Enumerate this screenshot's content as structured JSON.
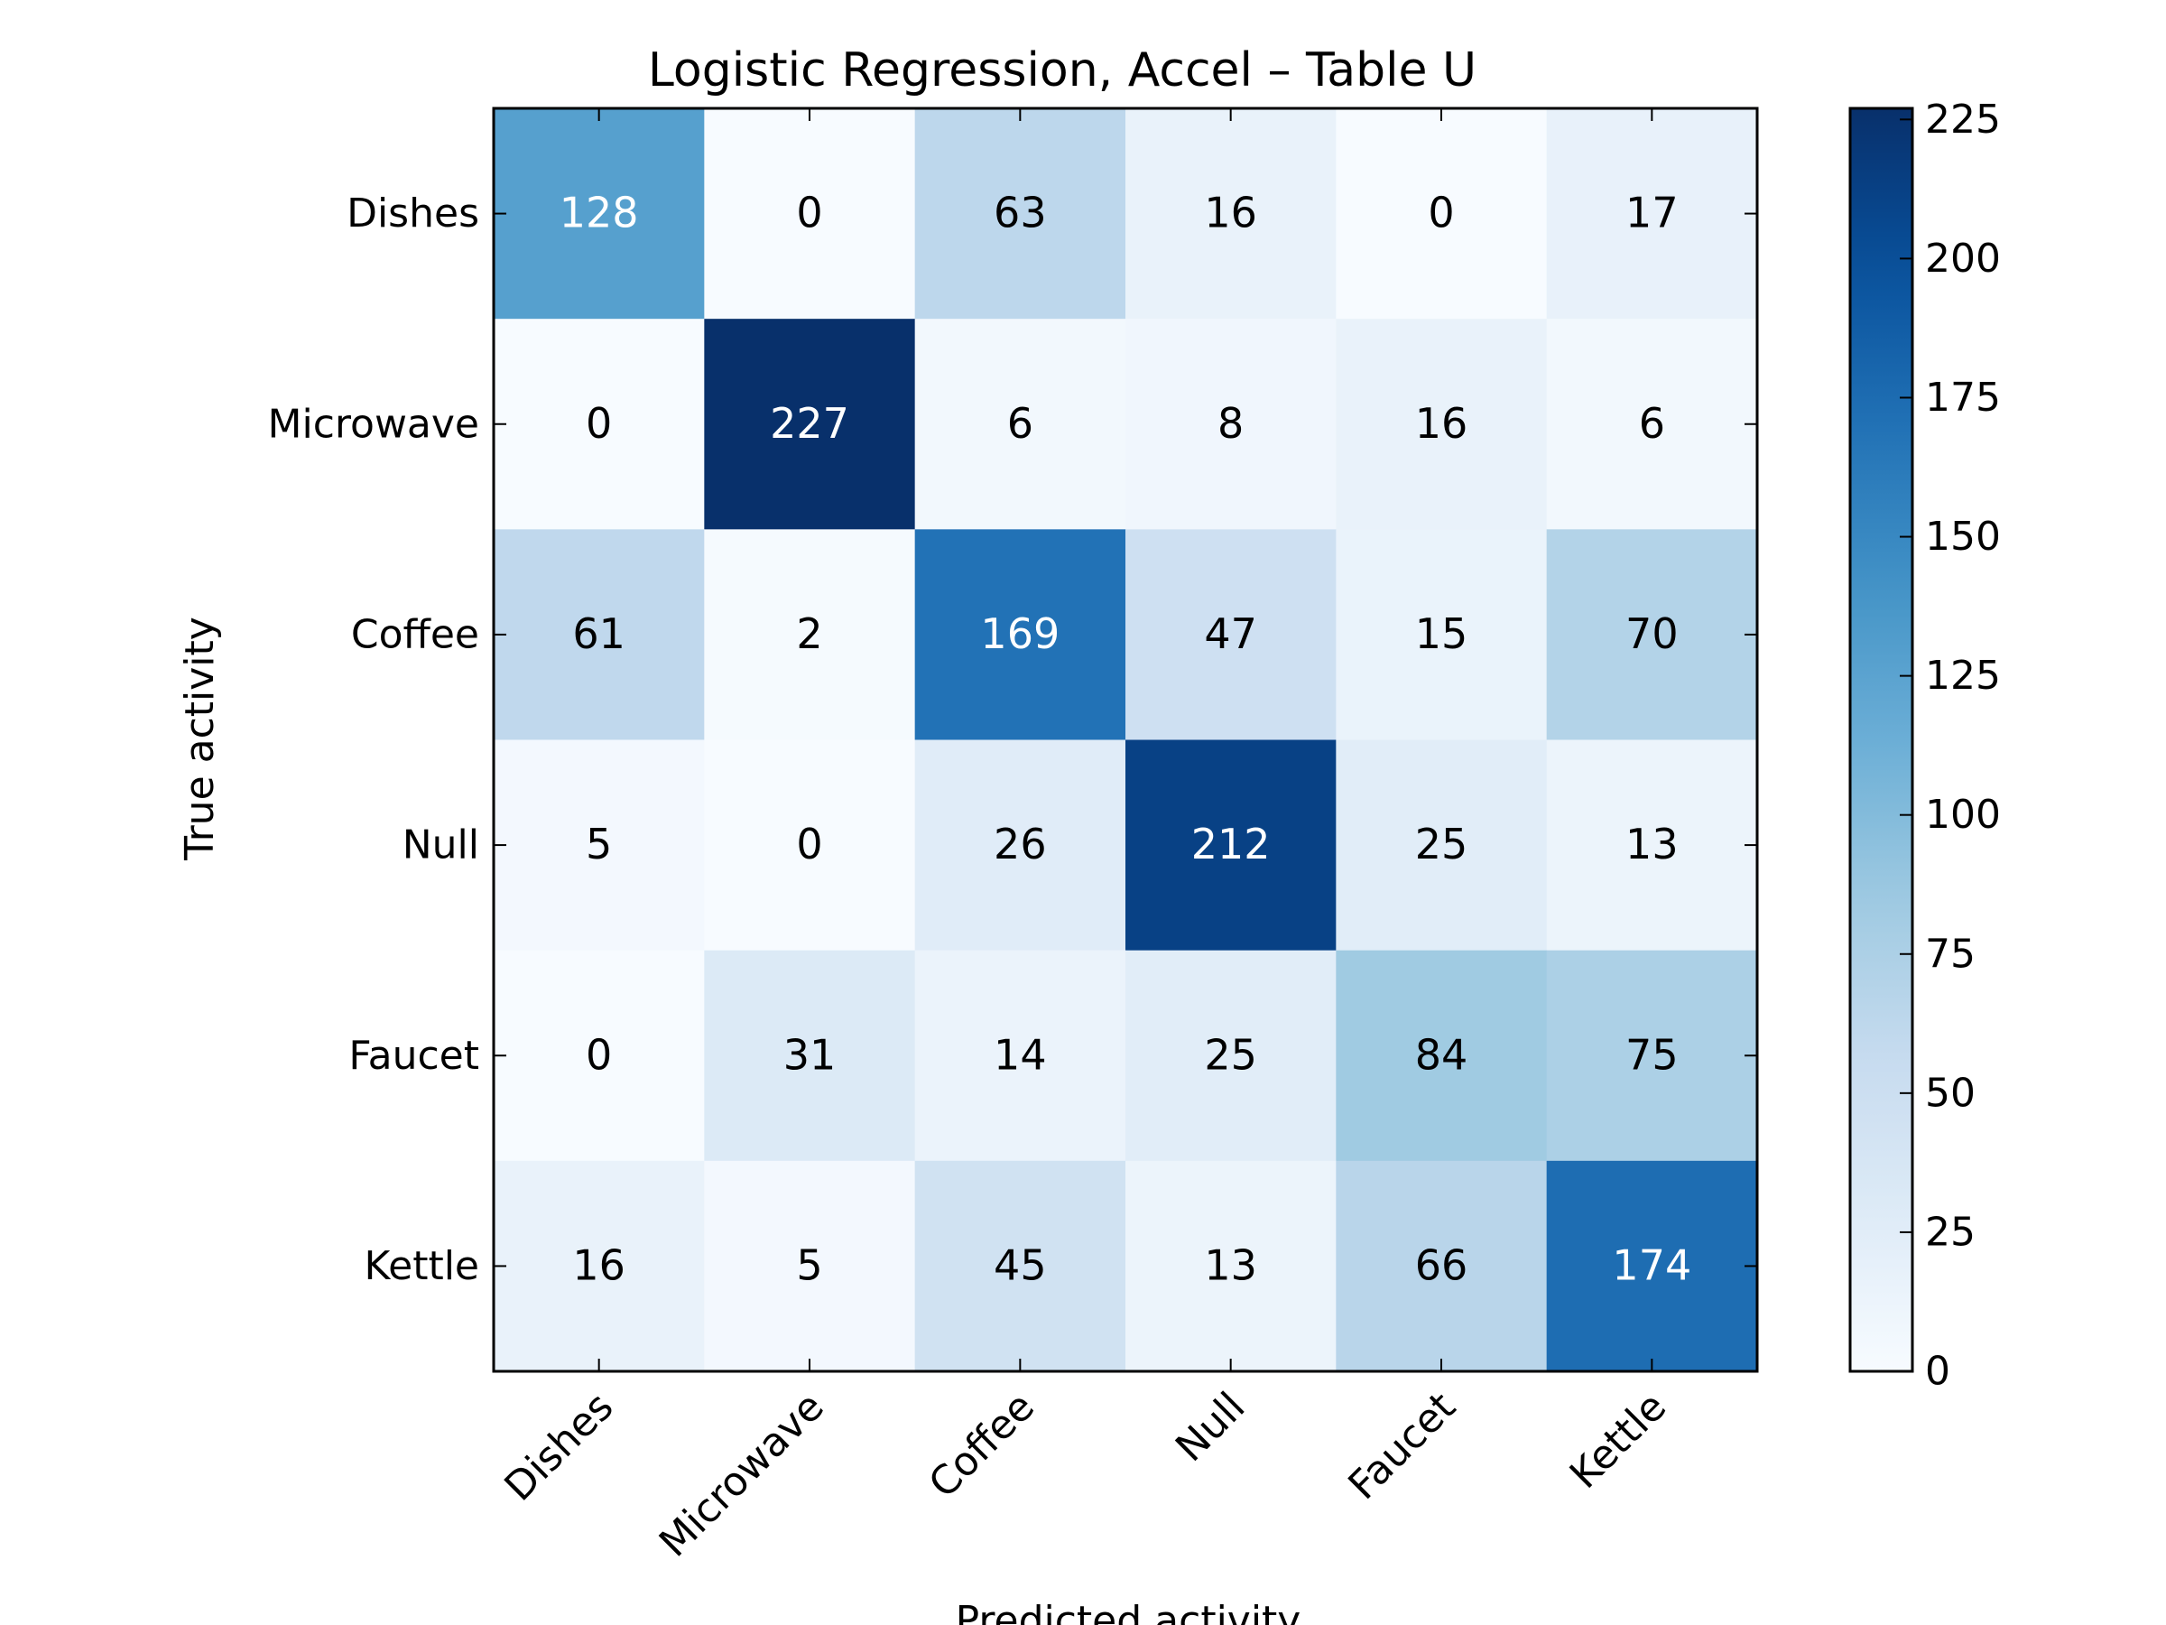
{
  "chart_data": {
    "type": "heatmap",
    "title": "Logistic Regression, Accel – Table U",
    "xlabel": "Predicted activity",
    "ylabel": "True activity",
    "x_categories": [
      "Dishes",
      "Microwave",
      "Coffee",
      "Null",
      "Faucet",
      "Kettle"
    ],
    "y_categories": [
      "Dishes",
      "Microwave",
      "Coffee",
      "Null",
      "Faucet",
      "Kettle"
    ],
    "matrix": [
      [
        128,
        0,
        63,
        16,
        0,
        17
      ],
      [
        0,
        227,
        6,
        8,
        16,
        6
      ],
      [
        61,
        2,
        169,
        47,
        15,
        70
      ],
      [
        5,
        0,
        26,
        212,
        25,
        13
      ],
      [
        0,
        31,
        14,
        25,
        84,
        75
      ],
      [
        16,
        5,
        45,
        13,
        66,
        174
      ]
    ],
    "colorbar": {
      "range": [
        0,
        227
      ],
      "ticks": [
        0,
        25,
        50,
        75,
        100,
        125,
        150,
        175,
        200,
        225
      ],
      "colormap": "Blues"
    },
    "grid": false,
    "text_color_dark": "#000000",
    "text_color_light": "#ffffff"
  }
}
